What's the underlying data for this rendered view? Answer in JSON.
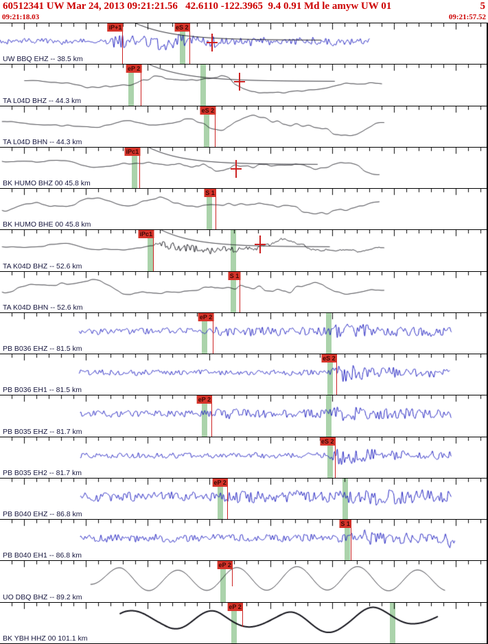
{
  "header": {
    "title": "60512341 UW Mar 24, 2013 09:21:21.56   42.6110 -122.3965  9.4 0.91 Md le amyw UW 01",
    "right_number": "5",
    "start_time": "09:21:18.03",
    "end_time": "09:21:57.52",
    "accent_color": "#cc0000"
  },
  "timeline": {
    "window_seconds": 39.49,
    "first_tick_second": 19,
    "first_tick_offset_s": 0.97,
    "major_every": 5
  },
  "colors": {
    "short_period_trace": "#2121c0",
    "broadband_trace": "#101018",
    "pick_line": "#cc2222",
    "pick_flag_bg": "#d5342a",
    "arrival_band": "rgba(135,192,135,0.7)",
    "station_label": "#15153d"
  },
  "traces": [
    {
      "label": "UW BBQ EHZ -- 38.5 km",
      "color": "#2121c0",
      "start": 0.0,
      "end": 0.76,
      "bands": [
        0.375
      ],
      "picks": [
        {
          "label": "iP+1",
          "x": 0.253
        },
        {
          "label": "eS 2",
          "x": 0.39
        }
      ],
      "crosses": [
        {
          "x": 0.436,
          "y": 0.48
        }
      ],
      "coda": {
        "x": 0.272,
        "amp": 27,
        "tau": 55
      },
      "wave": {
        "seed": 101,
        "env": {
          "hf": [
            [
              0,
              3.5
            ],
            [
              0.22,
              3.5
            ],
            [
              0.245,
              12
            ],
            [
              0.3,
              9
            ],
            [
              0.33,
              13
            ],
            [
              0.4,
              9
            ],
            [
              0.5,
              7
            ],
            [
              0.6,
              6
            ],
            [
              0.76,
              5
            ]
          ],
          "mid": [
            [
              0,
              1.5
            ],
            [
              0.76,
              1.5
            ]
          ]
        }
      }
    },
    {
      "label": "TA L04D BHZ -- 44.3 km",
      "color": "#101018",
      "start": 0.05,
      "end": 0.785,
      "bands": [
        0.27,
        0.418
      ],
      "picks": [
        {
          "label": "eP 2",
          "x": 0.291
        }
      ],
      "crosses": [
        {
          "x": 0.492,
          "y": 0.42
        }
      ],
      "coda": {
        "x": 0.3,
        "amp": 27,
        "tau": 55
      },
      "wave": {
        "seed": 202,
        "env": {
          "low": [
            [
              0.05,
              7
            ],
            [
              0.15,
              13
            ],
            [
              0.3,
              11
            ],
            [
              0.45,
              13
            ],
            [
              0.6,
              11
            ],
            [
              0.785,
              15
            ]
          ],
          "vlow": [
            [
              0.05,
              8
            ],
            [
              0.785,
              9
            ]
          ],
          "mid": [
            [
              0.05,
              0.5
            ],
            [
              0.28,
              2
            ],
            [
              0.5,
              2
            ],
            [
              0.785,
              1
            ]
          ]
        }
      }
    },
    {
      "label": "TA L04D BHN -- 44.3 km",
      "color": "#101018",
      "start": 0.004,
      "end": 0.79,
      "bands": [
        0.425
      ],
      "picks": [
        {
          "label": "eS 2",
          "x": 0.443
        }
      ],
      "wave": {
        "seed": 303,
        "env": {
          "low": [
            [
              0,
              11
            ],
            [
              0.3,
              13
            ],
            [
              0.5,
              11
            ],
            [
              0.79,
              13
            ]
          ],
          "vlow": [
            [
              0,
              7
            ],
            [
              0.79,
              8
            ]
          ],
          "mid": [
            [
              0.35,
              1
            ],
            [
              0.45,
              3
            ],
            [
              0.6,
              3
            ],
            [
              0.79,
              1
            ]
          ]
        }
      }
    },
    {
      "label": "BK HUMO BHZ 00 45.8 km",
      "color": "#101018",
      "start": 0.004,
      "end": 0.78,
      "bands": [
        0.276
      ],
      "picks": [
        {
          "label": "iPc1",
          "x": 0.288
        }
      ],
      "crosses": [
        {
          "x": 0.485,
          "y": 0.53
        }
      ],
      "coda": {
        "x": 0.3,
        "amp": 27,
        "tau": 50
      },
      "wave": {
        "seed": 404,
        "env": {
          "low": [
            [
              0,
              9
            ],
            [
              0.3,
              11
            ],
            [
              0.5,
              9
            ],
            [
              0.78,
              12
            ]
          ],
          "vlow": [
            [
              0,
              7
            ],
            [
              0.78,
              8
            ]
          ],
          "mid": [
            [
              0.28,
              1
            ],
            [
              0.42,
              5
            ],
            [
              0.55,
              3
            ],
            [
              0.78,
              1
            ]
          ]
        }
      }
    },
    {
      "label": "BK HUMO BHE 00 45.8 km",
      "color": "#101018",
      "start": 0.004,
      "end": 0.78,
      "bands": [
        0.43
      ],
      "picks": [
        {
          "label": "S 1",
          "x": 0.444
        }
      ],
      "wave": {
        "seed": 505,
        "env": {
          "low": [
            [
              0,
              11
            ],
            [
              0.44,
              13
            ],
            [
              0.78,
              12
            ]
          ],
          "vlow": [
            [
              0,
              7
            ],
            [
              0.78,
              8
            ]
          ],
          "mid": [
            [
              0.44,
              1.5
            ],
            [
              0.6,
              2.5
            ],
            [
              0.78,
              1
            ]
          ]
        }
      }
    },
    {
      "label": "TA K04D BHZ -- 52.6 km",
      "color": "#101018",
      "start": 0.004,
      "end": 0.79,
      "bands": [
        0.309,
        0.48
      ],
      "picks": [
        {
          "label": "iPc1",
          "x": 0.316
        }
      ],
      "crosses": [
        {
          "x": 0.534,
          "y": 0.35
        }
      ],
      "coda": {
        "x": 0.325,
        "amp": 27,
        "tau": 50
      },
      "wave": {
        "seed": 606,
        "env": {
          "low": [
            [
              0,
              8
            ],
            [
              0.3,
              7
            ],
            [
              0.5,
              9
            ],
            [
              0.62,
              15
            ],
            [
              0.79,
              11
            ]
          ],
          "vlow": [
            [
              0,
              5
            ],
            [
              0.79,
              7
            ]
          ],
          "hf": [
            [
              0.31,
              0
            ],
            [
              0.325,
              7
            ],
            [
              0.42,
              6
            ],
            [
              0.5,
              3.5
            ],
            [
              0.55,
              2
            ],
            [
              0.62,
              1
            ],
            [
              0.79,
              0.5
            ]
          ],
          "mid": [
            [
              0.3,
              1
            ],
            [
              0.5,
              3
            ],
            [
              0.79,
              2
            ]
          ]
        }
      }
    },
    {
      "label": "TA K04D BHN -- 52.6 km",
      "color": "#101018",
      "start": 0.004,
      "end": 0.79,
      "bands": [
        0.48
      ],
      "picks": [
        {
          "label": "S 1",
          "x": 0.494
        }
      ],
      "wave": {
        "seed": 707,
        "env": {
          "low": [
            [
              0,
              8
            ],
            [
              0.3,
              10
            ],
            [
              0.5,
              11
            ],
            [
              0.79,
              10
            ]
          ],
          "vlow": [
            [
              0,
              5
            ],
            [
              0.79,
              6
            ]
          ],
          "mid": [
            [
              0.3,
              2
            ],
            [
              0.45,
              4
            ],
            [
              0.6,
              4
            ],
            [
              0.79,
              1.5
            ]
          ]
        }
      }
    },
    {
      "label": "PB B036 EHZ -- 81.5 km",
      "color": "#2121c0",
      "start": 0.162,
      "end": 0.928,
      "bands": [
        0.42,
        0.675
      ],
      "picks": [
        {
          "label": "eP 2",
          "x": 0.439
        }
      ],
      "wave": {
        "seed": 808,
        "env": {
          "hf": [
            [
              0.162,
              4.5
            ],
            [
              0.42,
              4.5
            ],
            [
              0.445,
              7.5
            ],
            [
              0.55,
              6
            ],
            [
              0.67,
              6.5
            ],
            [
              0.695,
              13
            ],
            [
              0.75,
              10
            ],
            [
              0.85,
              7
            ],
            [
              0.928,
              7
            ]
          ],
          "mid": [
            [
              0.162,
              1
            ],
            [
              0.928,
              1
            ]
          ]
        }
      }
    },
    {
      "label": "PB B036 EH1 -- 81.5 km",
      "color": "#2121c0",
      "start": 0.162,
      "end": 0.925,
      "bands": [
        0.678
      ],
      "picks": [
        {
          "label": "eS 2",
          "x": 0.692
        }
      ],
      "wave": {
        "seed": 909,
        "env": {
          "hf": [
            [
              0.162,
              4
            ],
            [
              0.67,
              4
            ],
            [
              0.7,
              14
            ],
            [
              0.75,
              10
            ],
            [
              0.82,
              7
            ],
            [
              0.925,
              6
            ]
          ],
          "mid": [
            [
              0.162,
              0.8
            ],
            [
              0.925,
              0.8
            ]
          ]
        }
      }
    },
    {
      "label": "PB B035 EHZ -- 81.7 km",
      "color": "#2121c0",
      "start": 0.165,
      "end": 0.928,
      "bands": [
        0.42,
        0.675
      ],
      "picks": [
        {
          "label": "eP 2",
          "x": 0.436
        }
      ],
      "wave": {
        "seed": 1010,
        "env": {
          "hf": [
            [
              0.165,
              4.5
            ],
            [
              0.42,
              4.5
            ],
            [
              0.445,
              7.5
            ],
            [
              0.56,
              5.5
            ],
            [
              0.675,
              6.5
            ],
            [
              0.7,
              12
            ],
            [
              0.76,
              9
            ],
            [
              0.928,
              7
            ]
          ],
          "mid": [
            [
              0.165,
              1
            ],
            [
              0.928,
              1
            ]
          ]
        }
      }
    },
    {
      "label": "PB B035 EH2 -- 81.7 km",
      "color": "#2121c0",
      "start": 0.165,
      "end": 0.928,
      "bands": [
        0.678
      ],
      "picks": [
        {
          "label": "eS 2",
          "x": 0.689
        }
      ],
      "wave": {
        "seed": 1111,
        "env": {
          "hf": [
            [
              0.165,
              4
            ],
            [
              0.675,
              4
            ],
            [
              0.7,
              14
            ],
            [
              0.76,
              9.5
            ],
            [
              0.83,
              7
            ],
            [
              0.928,
              7
            ]
          ],
          "mid": [
            [
              0.165,
              0.8
            ],
            [
              0.928,
              0.8
            ]
          ]
        }
      }
    },
    {
      "label": "PB B040 EHZ -- 86.8 km",
      "color": "#2121c0",
      "start": 0.165,
      "end": 0.928,
      "bands": [
        0.453,
        0.709
      ],
      "picks": [
        {
          "label": "eP 2",
          "x": 0.468
        }
      ],
      "wave": {
        "seed": 1212,
        "env": {
          "hf": [
            [
              0.165,
              6.5
            ],
            [
              0.45,
              6.5
            ],
            [
              0.475,
              9.5
            ],
            [
              0.6,
              8.5
            ],
            [
              0.71,
              8.5
            ],
            [
              0.73,
              13
            ],
            [
              0.79,
              11
            ],
            [
              0.928,
              9
            ]
          ],
          "mid": [
            [
              0.165,
              1.2
            ],
            [
              0.928,
              1.2
            ]
          ]
        }
      }
    },
    {
      "label": "PB B040 EH1 -- 86.8 km",
      "color": "#2121c0",
      "start": 0.165,
      "end": 0.935,
      "bands": [
        0.713
      ],
      "picks": [
        {
          "label": "S 1",
          "x": 0.722
        }
      ],
      "wave": {
        "seed": 1313,
        "env": {
          "hf": [
            [
              0.165,
              5.5
            ],
            [
              0.71,
              5.5
            ],
            [
              0.73,
              12
            ],
            [
              0.79,
              9
            ],
            [
              0.9,
              7
            ],
            [
              0.918,
              7
            ],
            [
              0.927,
              22
            ],
            [
              0.935,
              9
            ]
          ],
          "mid": [
            [
              0.165,
              1
            ],
            [
              0.935,
              1
            ]
          ]
        }
      }
    },
    {
      "label": "UO DBQ BHZ -- 89.2 km",
      "color": "#101018",
      "start": 0.186,
      "end": 0.915,
      "bands": [
        0.459
      ],
      "picks": [
        {
          "label": "eP 2",
          "x": 0.478,
          "h": 0.62
        }
      ],
      "wave": {
        "seed": 1414,
        "sine": {
          "lambda": 88,
          "env": [
            [
              0.186,
              8
            ],
            [
              0.25,
              15
            ],
            [
              0.5,
              17
            ],
            [
              0.85,
              15
            ],
            [
              0.915,
              12
            ]
          ]
        },
        "env": {
          "low": [
            [
              0.186,
              3
            ],
            [
              0.915,
              4
            ]
          ],
          "vlow": [
            [
              0.186,
              2
            ],
            [
              0.915,
              3
            ]
          ]
        }
      }
    },
    {
      "label": "BK YBH HHZ 00 101.1 km",
      "color": "#101018",
      "lw": 2,
      "start": 0.246,
      "end": 0.9,
      "bands": [
        0.481,
        0.807
      ],
      "picks": [
        {
          "label": "eP 2",
          "x": 0.499,
          "h": 0.6
        }
      ],
      "wave": {
        "seed": 1515,
        "sine": {
          "lambda": 118,
          "env": [
            [
              0.246,
              8
            ],
            [
              0.35,
              14
            ],
            [
              0.6,
              16
            ],
            [
              0.9,
              12
            ]
          ]
        },
        "env": {
          "low": [
            [
              0.246,
              6
            ],
            [
              0.9,
              8
            ]
          ],
          "vlow": [
            [
              0.246,
              3
            ],
            [
              0.9,
              5
            ]
          ]
        }
      }
    }
  ]
}
